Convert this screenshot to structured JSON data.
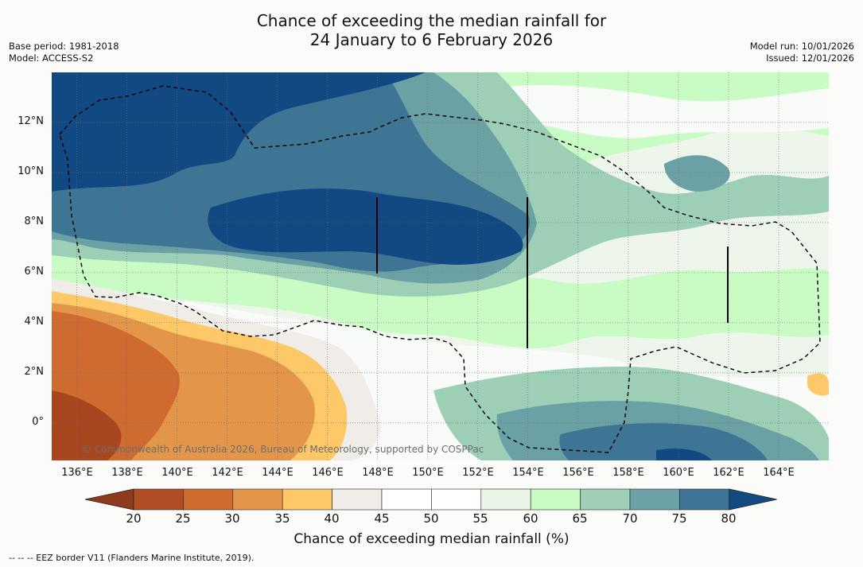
{
  "header": {
    "title_line1": "Chance of exceeding the median rainfall for",
    "title_line2": "24 January to 6 February 2026",
    "base_period": "Base period: 1981-2018",
    "model": "Model: ACCESS-S2",
    "model_run": "Model run: 10/01/2026",
    "issued": "Issued: 12/01/2026"
  },
  "map": {
    "lat_labels": [
      "12°N",
      "10°N",
      "8°N",
      "6°N",
      "4°N",
      "2°N",
      "0°"
    ],
    "lon_labels": [
      "136°E",
      "138°E",
      "140°E",
      "142°E",
      "144°E",
      "146°E",
      "148°E",
      "150°E",
      "152°E",
      "154°E",
      "156°E",
      "158°E",
      "160°E",
      "162°E",
      "164°E"
    ],
    "lon_range": [
      135,
      166
    ],
    "lat_range": [
      -1.5,
      14
    ],
    "credit": "© Commonwealth of Australia 2026, Bureau of Meteorology, supported by COSPPac"
  },
  "colorbar": {
    "ticks": [
      "20",
      "25",
      "30",
      "35",
      "40",
      "45",
      "50",
      "55",
      "60",
      "65",
      "70",
      "75",
      "80"
    ],
    "colors": [
      "#8e3a1c",
      "#b04d25",
      "#cf6b30",
      "#e3964a",
      "#fdc868",
      "#f0ede8",
      "#ffffff",
      "#ffffff",
      "#eaf5e8",
      "#c8fbc4",
      "#9dcfb7",
      "#6ca2a5",
      "#3f7596",
      "#144a83"
    ],
    "title": "Chance of exceeding median rainfall (%)"
  },
  "footer": {
    "legend": "--  --  -- EEZ border V11 (Flanders Marine Institute, 2019)."
  }
}
